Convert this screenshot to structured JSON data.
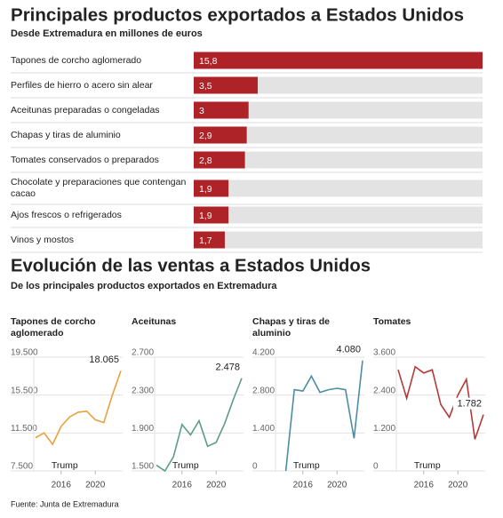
{
  "chart_data": [
    {
      "type": "bar",
      "title": "Principales productos exportados a Estados Unidos",
      "subtitle": "Desde Extremadura en millones de euros",
      "categories": [
        "Tapones de corcho aglomerado",
        "Perfiles de hierro o acero sin alear",
        "Aceitunas preparadas o congeladas",
        "Chapas y tiras de aluminio",
        "Tomates conservados o preparados",
        "Chocolate y preparaciones que contengan cacao",
        "Ajos frescos o refrigerados",
        "Vinos y mostos"
      ],
      "values": [
        15.8,
        3.5,
        3,
        2.9,
        2.8,
        1.9,
        1.9,
        1.7
      ],
      "value_labels": [
        "15,8",
        "3,5",
        "3",
        "2,9",
        "2,8",
        "1,9",
        "1,9",
        "1,7"
      ],
      "color": "#ad2328"
    },
    {
      "type": "line",
      "title": "Tapones de corcho aglomerado",
      "color": "#e6a23c",
      "x": [
        2013,
        2014,
        2015,
        2016,
        2017,
        2018,
        2019,
        2020,
        2021,
        2022,
        2023
      ],
      "values": [
        11000,
        11500,
        10300,
        12200,
        13200,
        13700,
        13800,
        12900,
        12600,
        15500,
        18065
      ],
      "value_labels": [
        null,
        null,
        null,
        null,
        null,
        null,
        null,
        null,
        null,
        null,
        "18.065"
      ],
      "xlim": [
        2013,
        2023
      ],
      "xticks": [
        2016,
        2020
      ],
      "ylim": [
        7500,
        19500
      ],
      "yticks": [
        {
          "value": 7500,
          "label": "7.500"
        },
        {
          "value": 11500,
          "label": "11.500"
        },
        {
          "value": 15500,
          "label": "15.500"
        },
        {
          "value": 19500,
          "label": "19.500"
        }
      ],
      "annotation": "Trump",
      "grid": true
    },
    {
      "type": "line",
      "title": "Aceitunas",
      "color": "#5c9c88",
      "x": [
        2013,
        2014,
        2015,
        2016,
        2017,
        2018,
        2019,
        2020,
        2021,
        2022,
        2023
      ],
      "values": [
        1560,
        1500,
        1650,
        1990,
        1880,
        2030,
        1760,
        1800,
        2000,
        2250,
        2478
      ],
      "value_labels": [
        null,
        null,
        null,
        null,
        null,
        null,
        null,
        null,
        null,
        null,
        "2.478"
      ],
      "xlim": [
        2013,
        2023
      ],
      "xticks": [
        2016,
        2020
      ],
      "ylim": [
        1500,
        2700
      ],
      "yticks": [
        {
          "value": 1500,
          "label": "1.500"
        },
        {
          "value": 1900,
          "label": "1.900"
        },
        {
          "value": 2300,
          "label": "2.300"
        },
        {
          "value": 2700,
          "label": "2.700"
        }
      ],
      "annotation": "Trump",
      "grid": true
    },
    {
      "type": "line",
      "title": "Chapas y tiras de aluminio",
      "color": "#4a8ea3",
      "x": [
        2013,
        2014,
        2015,
        2016,
        2017,
        2018,
        2019,
        2020,
        2021,
        2022,
        2023
      ],
      "values": [
        null,
        0,
        3000,
        2950,
        3500,
        2900,
        3000,
        3050,
        3000,
        1200,
        4080
      ],
      "value_labels": [
        null,
        null,
        null,
        null,
        null,
        null,
        null,
        null,
        null,
        null,
        "4.080"
      ],
      "xlim": [
        2013,
        2023
      ],
      "xticks": [
        2016,
        2020
      ],
      "ylim": [
        0,
        4200
      ],
      "yticks": [
        0,
        {
          "value": 1400,
          "label": "1.400"
        },
        {
          "value": 2800,
          "label": "2.800"
        },
        {
          "value": 4200,
          "label": "4.200"
        }
      ],
      "annotation": "Trump",
      "grid": true
    },
    {
      "type": "line",
      "title": "Tomates",
      "color": "#b43a3a",
      "x": [
        2013,
        2014,
        2015,
        2016,
        2017,
        2018,
        2019,
        2020,
        2021,
        2022,
        2023
      ],
      "values": [
        3200,
        2300,
        3300,
        3100,
        3200,
        2100,
        1700,
        2400,
        2900,
        1000,
        1782
      ],
      "value_labels": [
        null,
        null,
        null,
        null,
        null,
        null,
        null,
        null,
        null,
        null,
        "1.782"
      ],
      "xlim": [
        2013,
        2023
      ],
      "xticks": [
        2016,
        2020
      ],
      "ylim": [
        0,
        3600
      ],
      "yticks": [
        0,
        {
          "value": 1200,
          "label": "1.200"
        },
        {
          "value": 2400,
          "label": "2.400"
        },
        {
          "value": 3600,
          "label": "3.600"
        }
      ],
      "annotation": "Trump",
      "grid": true
    }
  ],
  "section_title": "Evolución de las ventas a Estados Unidos",
  "section_subtitle": "De los principales productos exportados en Extremadura",
  "source": "Fuente: Junta de Extremadura"
}
